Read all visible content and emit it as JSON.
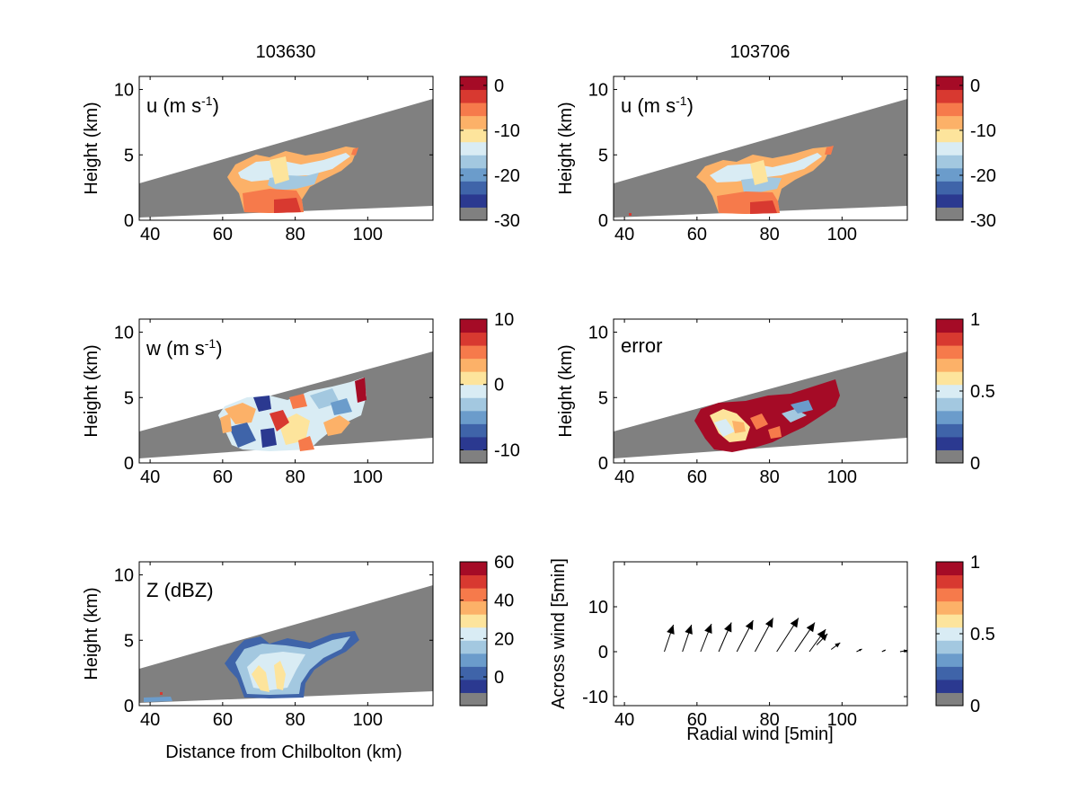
{
  "figure": {
    "left_title": "103630",
    "right_title": "103706"
  },
  "colors": {
    "masked_gray": "#808080",
    "axis_black": "#000000",
    "palette": [
      "#808080",
      "#2b3990",
      "#3f64a9",
      "#6b9ccb",
      "#a3c8e0",
      "#d9ecf4",
      "#fde49c",
      "#fcb168",
      "#f67a4b",
      "#d83930",
      "#a50b26"
    ]
  },
  "chart_data": [
    {
      "id": "u-103630",
      "type": "heatmap",
      "panel_label": "u (m s",
      "panel_label_sup": "-1",
      "panel_label_end": ")",
      "xlabel": "",
      "ylabel": "Height (km)",
      "xlim": [
        37,
        118
      ],
      "ylim": [
        0,
        11
      ],
      "xticks": [
        "40",
        "60",
        "80",
        "100"
      ],
      "yticks": [
        "0",
        "5",
        "10"
      ],
      "grid": false,
      "colorbar": {
        "ticks": [
          "0",
          "-10",
          "-20",
          "-30"
        ],
        "range": [
          -30,
          2
        ]
      },
      "field_summary": {
        "cloud_x_range_km": [
          61,
          98
        ],
        "cloud_height_range_km": [
          0.5,
          5.5
        ],
        "dominant_values": [
          -10,
          -15,
          -5
        ]
      }
    },
    {
      "id": "u-103706",
      "type": "heatmap",
      "panel_label": "u (m s",
      "panel_label_sup": "-1",
      "panel_label_end": ")",
      "xlabel": "",
      "ylabel": "Height (km)",
      "xlim": [
        37,
        118
      ],
      "ylim": [
        0,
        11
      ],
      "xticks": [
        "40",
        "60",
        "80",
        "100"
      ],
      "yticks": [
        "0",
        "5",
        "10"
      ],
      "grid": false,
      "colorbar": {
        "ticks": [
          "0",
          "-10",
          "-20",
          "-30"
        ],
        "range": [
          -30,
          2
        ]
      },
      "field_summary": {
        "cloud_x_range_km": [
          61,
          98
        ],
        "cloud_height_range_km": [
          0.5,
          5.5
        ],
        "dominant_values": [
          -10,
          -15,
          -5
        ]
      }
    },
    {
      "id": "w-103630",
      "type": "heatmap",
      "panel_label": "w (m s",
      "panel_label_sup": "-1",
      "panel_label_end": ")",
      "xlabel": "",
      "ylabel": "Height (km)",
      "xlim": [
        37,
        118
      ],
      "ylim": [
        0,
        11
      ],
      "xticks": [
        "40",
        "60",
        "80",
        "100"
      ],
      "yticks": [
        "0",
        "5",
        "10"
      ],
      "grid": false,
      "colorbar": {
        "ticks": [
          "10",
          "0",
          "-10"
        ],
        "range": [
          -12,
          10
        ]
      },
      "field_summary": {
        "cloud_x_range_km": [
          60,
          99
        ],
        "cloud_height_range_km": [
          0.8,
          6.3
        ],
        "dominant_values": [
          -6,
          0,
          6
        ]
      }
    },
    {
      "id": "error-103706",
      "type": "heatmap",
      "panel_label": "error",
      "panel_label_sup": "",
      "panel_label_end": "",
      "xlabel": "",
      "ylabel": "Height (km)",
      "xlim": [
        37,
        118
      ],
      "ylim": [
        0,
        11
      ],
      "xticks": [
        "40",
        "60",
        "80",
        "100"
      ],
      "yticks": [
        "0",
        "5",
        "10"
      ],
      "grid": false,
      "colorbar": {
        "ticks": [
          "1",
          "0.5",
          "0"
        ],
        "range": [
          0,
          1
        ]
      },
      "field_summary": {
        "cloud_x_range_km": [
          62,
          98
        ],
        "cloud_height_range_km": [
          1.0,
          6.2
        ],
        "dominant_values": [
          1.0,
          0.4,
          0.7
        ]
      }
    },
    {
      "id": "z-103630",
      "type": "heatmap",
      "panel_label": "Z (dBZ)",
      "panel_label_sup": "",
      "panel_label_end": "",
      "xlabel": "Distance from Chilbolton (km)",
      "ylabel": "Height (km)",
      "xlim": [
        37,
        118
      ],
      "ylim": [
        0,
        11
      ],
      "xticks": [
        "40",
        "60",
        "80",
        "100"
      ],
      "yticks": [
        "0",
        "5",
        "10"
      ],
      "grid": false,
      "colorbar": {
        "ticks": [
          "60",
          "40",
          "20",
          "0"
        ],
        "range": [
          -15,
          60
        ]
      },
      "field_summary": {
        "cloud_x_range_km": [
          61,
          98
        ],
        "cloud_height_range_km": [
          0.5,
          5.5
        ],
        "dominant_values": [
          10,
          20,
          30
        ]
      }
    },
    {
      "id": "wind-vectors",
      "type": "scatter",
      "panel_label": "",
      "xlabel": "Radial wind [5min]",
      "ylabel": "Across wind [5min]",
      "xlim": [
        37,
        118
      ],
      "ylim": [
        -12,
        20
      ],
      "xticks": [
        "40",
        "60",
        "80",
        "100"
      ],
      "yticks": [
        "-10",
        "0",
        "10"
      ],
      "grid": false,
      "colorbar": {
        "ticks": [
          "1",
          "0.5",
          "0"
        ],
        "range": [
          0,
          1
        ]
      },
      "vectors": [
        {
          "x": 51,
          "y": 0,
          "dx": 2.5,
          "dy": 6
        },
        {
          "x": 56,
          "y": 0,
          "dx": 2.5,
          "dy": 6
        },
        {
          "x": 61,
          "y": 0,
          "dx": 3,
          "dy": 6.2
        },
        {
          "x": 66,
          "y": 0,
          "dx": 3.5,
          "dy": 6.5
        },
        {
          "x": 71,
          "y": 0,
          "dx": 4.5,
          "dy": 7
        },
        {
          "x": 76,
          "y": 0,
          "dx": 5,
          "dy": 7.5
        },
        {
          "x": 82,
          "y": 0,
          "dx": 6,
          "dy": 7.5
        },
        {
          "x": 87,
          "y": 0,
          "dx": 5.5,
          "dy": 6.5
        },
        {
          "x": 91,
          "y": 0,
          "dx": 4.5,
          "dy": 5
        },
        {
          "x": 93,
          "y": 1.5,
          "dx": 3,
          "dy": 2.5
        },
        {
          "x": 97,
          "y": 0.5,
          "dx": 2.5,
          "dy": 1.5
        },
        {
          "x": 104,
          "y": 0,
          "dx": 1.5,
          "dy": 0.6
        },
        {
          "x": 111,
          "y": 0,
          "dx": 1,
          "dy": 0.4
        },
        {
          "x": 116,
          "y": 0,
          "dx": 2,
          "dy": 0.3
        }
      ]
    }
  ]
}
